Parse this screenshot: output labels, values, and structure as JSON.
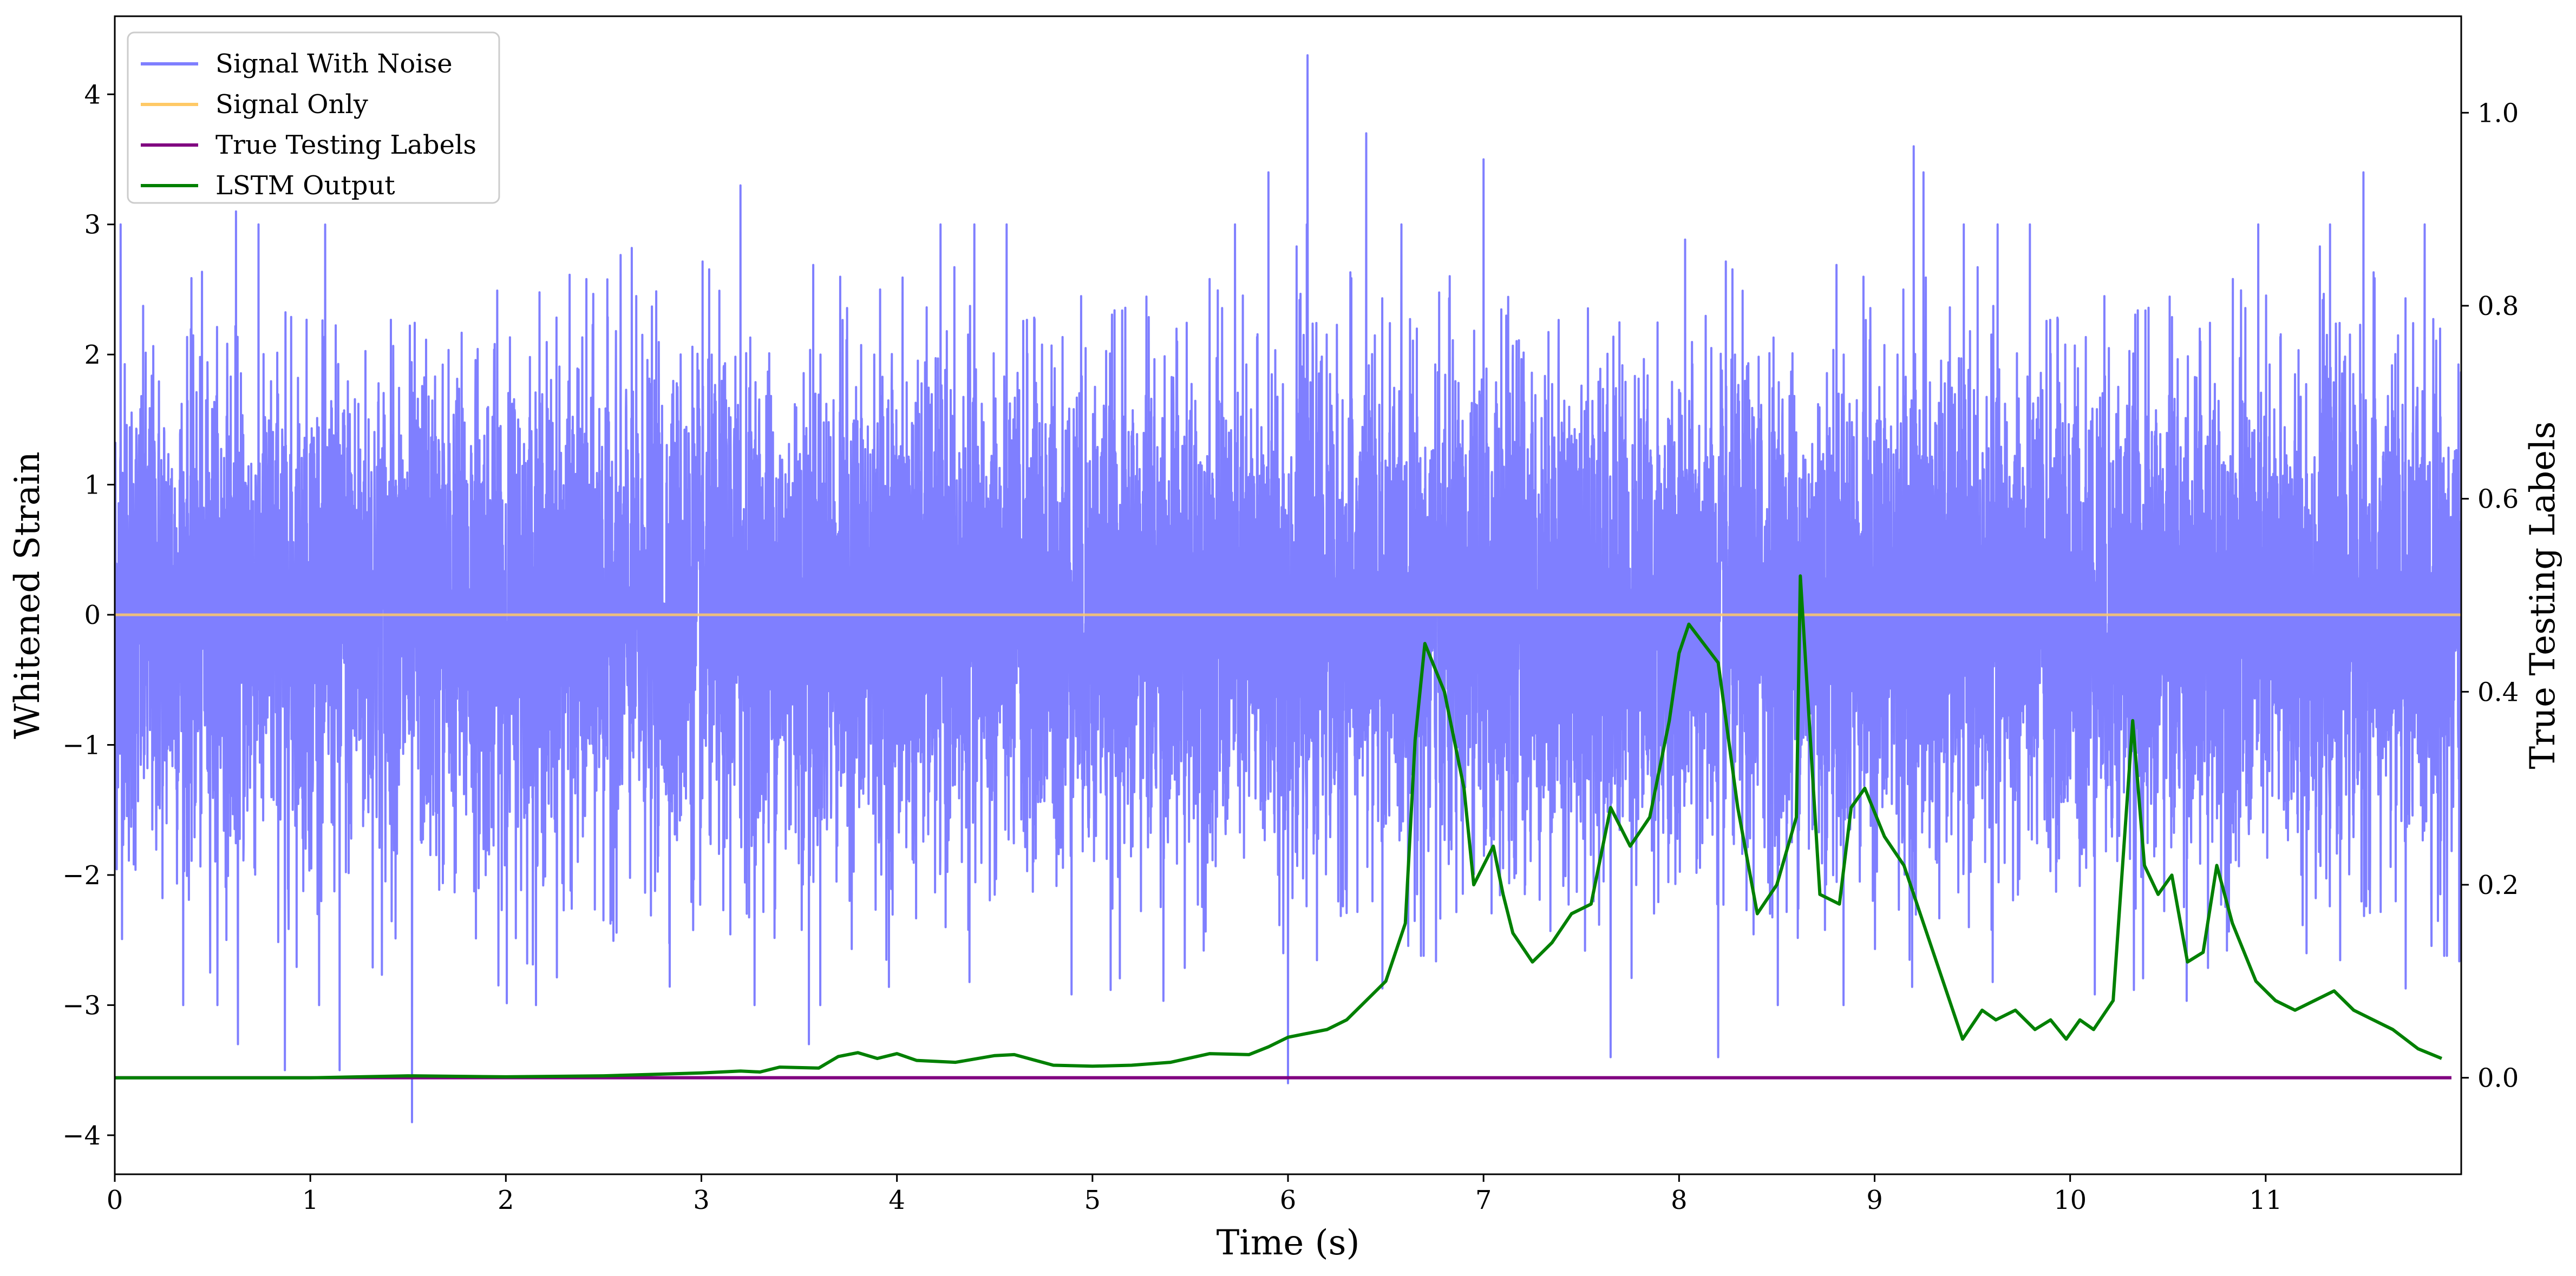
{
  "chart_data": {
    "type": "line",
    "xlabel": "Time (s)",
    "ylabel_left": "Whitened Strain",
    "ylabel_right": "True Testing Labels",
    "xlim": [
      0,
      12
    ],
    "ylim_left": [
      -4.3,
      4.6
    ],
    "ylim_right": [
      -0.1,
      1.1
    ],
    "xticks": [
      0,
      1,
      2,
      3,
      4,
      5,
      6,
      7,
      8,
      9,
      10,
      11
    ],
    "yticks_left": [
      -4,
      -3,
      -2,
      -1,
      0,
      1,
      2,
      3,
      4
    ],
    "yticks_right": [
      0.0,
      0.2,
      0.4,
      0.6,
      0.8,
      1.0
    ],
    "grid": false,
    "legend": {
      "placement": "top-left",
      "entries": [
        "Signal With Noise",
        "Signal Only",
        "True Testing Labels",
        "LSTM Output"
      ]
    },
    "colors": {
      "signal_with_noise": "#7f7fff",
      "signal_only": "#ffc966",
      "true_labels": "#800080",
      "lstm_output": "#008000"
    },
    "series": [
      {
        "name": "Signal With Noise",
        "axis": "left",
        "description_type": "noise",
        "std": 0.95,
        "peaks": [
          {
            "x": 0.03,
            "y": 3.0
          },
          {
            "x": 0.62,
            "y": 3.1
          },
          {
            "x": 0.63,
            "y": -3.3
          },
          {
            "x": 0.87,
            "y": -3.5
          },
          {
            "x": 1.15,
            "y": -3.5
          },
          {
            "x": 1.52,
            "y": -3.9
          },
          {
            "x": 3.2,
            "y": 3.3
          },
          {
            "x": 3.55,
            "y": -3.3
          },
          {
            "x": 5.9,
            "y": 3.4
          },
          {
            "x": 6.0,
            "y": -3.6
          },
          {
            "x": 6.1,
            "y": 4.3
          },
          {
            "x": 6.4,
            "y": 3.7
          },
          {
            "x": 7.0,
            "y": 3.5
          },
          {
            "x": 7.65,
            "y": -3.4
          },
          {
            "x": 8.2,
            "y": -3.4
          },
          {
            "x": 9.2,
            "y": 3.6
          },
          {
            "x": 9.25,
            "y": 3.4
          },
          {
            "x": 11.5,
            "y": 3.4
          }
        ]
      },
      {
        "name": "Signal Only",
        "axis": "left",
        "x": [
          0,
          12
        ],
        "y": [
          0,
          0
        ]
      },
      {
        "name": "True Testing Labels",
        "axis": "right",
        "x": [
          0,
          11.95
        ],
        "y": [
          0,
          0
        ]
      },
      {
        "name": "LSTM Output",
        "axis": "right",
        "x": [
          0,
          1,
          1.5,
          2,
          2.5,
          3,
          3.2,
          3.3,
          3.4,
          3.6,
          3.7,
          3.8,
          3.9,
          4.0,
          4.1,
          4.3,
          4.5,
          4.6,
          4.8,
          5.0,
          5.2,
          5.4,
          5.6,
          5.8,
          5.9,
          6.0,
          6.2,
          6.3,
          6.4,
          6.5,
          6.6,
          6.65,
          6.7,
          6.8,
          6.9,
          6.95,
          7.05,
          7.1,
          7.15,
          7.25,
          7.35,
          7.45,
          7.55,
          7.65,
          7.75,
          7.85,
          7.95,
          8.0,
          8.05,
          8.2,
          8.3,
          8.4,
          8.5,
          8.6,
          8.62,
          8.72,
          8.82,
          8.88,
          8.95,
          9.05,
          9.15,
          9.3,
          9.45,
          9.55,
          9.62,
          9.72,
          9.82,
          9.9,
          9.98,
          10.05,
          10.12,
          10.22,
          10.32,
          10.38,
          10.45,
          10.52,
          10.6,
          10.68,
          10.75,
          10.83,
          10.95,
          11.05,
          11.15,
          11.25,
          11.35,
          11.45,
          11.55,
          11.65,
          11.78,
          11.9
        ],
        "y": [
          0.0,
          0.0,
          0.002,
          0.001,
          0.002,
          0.005,
          0.007,
          0.006,
          0.011,
          0.01,
          0.022,
          0.026,
          0.02,
          0.025,
          0.018,
          0.016,
          0.023,
          0.024,
          0.013,
          0.012,
          0.013,
          0.016,
          0.025,
          0.024,
          0.032,
          0.042,
          0.05,
          0.06,
          0.08,
          0.1,
          0.16,
          0.35,
          0.45,
          0.4,
          0.3,
          0.2,
          0.24,
          0.19,
          0.15,
          0.12,
          0.14,
          0.17,
          0.18,
          0.28,
          0.24,
          0.27,
          0.37,
          0.44,
          0.47,
          0.43,
          0.28,
          0.17,
          0.2,
          0.27,
          0.52,
          0.19,
          0.18,
          0.28,
          0.3,
          0.25,
          0.22,
          0.13,
          0.04,
          0.07,
          0.06,
          0.07,
          0.05,
          0.06,
          0.04,
          0.06,
          0.05,
          0.08,
          0.37,
          0.22,
          0.19,
          0.21,
          0.12,
          0.13,
          0.22,
          0.16,
          0.1,
          0.08,
          0.07,
          0.08,
          0.09,
          0.07,
          0.06,
          0.05,
          0.03,
          0.02
        ]
      }
    ]
  }
}
